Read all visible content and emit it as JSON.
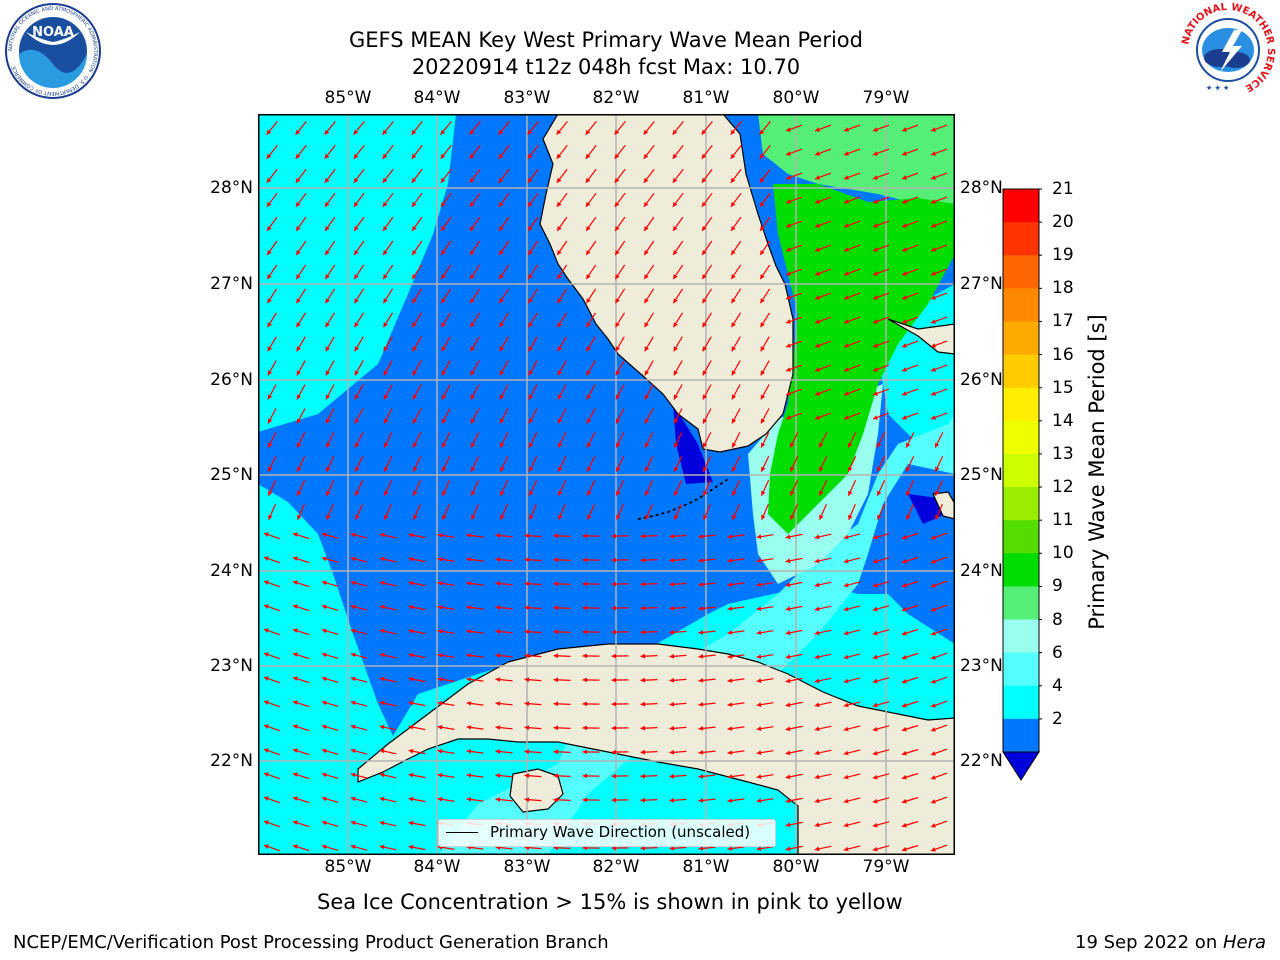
{
  "header": {
    "title_line1": "GEFS MEAN Key West Primary Wave Mean Period",
    "title_line2": "20220914 t12z 048h fcst   Max: 10.70"
  },
  "logos": {
    "left": {
      "name": "noaa-logo",
      "text": "NOAA",
      "ring_text": "NATIONAL OCEANIC AND ATMOSPHERIC ADMINISTRATION · U.S. DEPARTMENT OF COMMERCE"
    },
    "right": {
      "name": "nws-logo",
      "ring_text": "NATIONAL WEATHER SERVICE"
    }
  },
  "map": {
    "lon_labels": [
      "85°W",
      "84°W",
      "83°W",
      "82°W",
      "81°W",
      "80°W",
      "79°W"
    ],
    "lat_labels": [
      "28°N",
      "27°N",
      "26°N",
      "25°N",
      "24°N",
      "23°N",
      "22°N"
    ],
    "legend_label": "Primary Wave Direction (unscaled)",
    "arrow_color": "#ff0000",
    "land_color": "#efedd9"
  },
  "colorbar": {
    "label": "Primary Wave Mean Period [s]",
    "ticks": [
      "21",
      "20",
      "19",
      "18",
      "17",
      "16",
      "15",
      "14",
      "13",
      "12",
      "11",
      "10",
      "9",
      "8",
      "6",
      "4",
      "2"
    ],
    "colors": [
      "#ff0000",
      "#ff3300",
      "#ff6600",
      "#ff8800",
      "#ffaa00",
      "#ffcc00",
      "#ffee00",
      "#eeff00",
      "#ccff00",
      "#99ee00",
      "#55dd00",
      "#00dd00",
      "#55ee77",
      "#99ffee",
      "#55ffff",
      "#00ffff",
      "#0077ff"
    ],
    "extend_color": "#0000dd"
  },
  "footer": {
    "note": "Sea Ice Concentration > 15% is shown in pink to yellow",
    "credit_left": "NCEP/EMC/Verification Post Processing Product Generation Branch",
    "credit_right_prefix": "19 Sep 2022 on ",
    "credit_right_host": "Hera"
  }
}
